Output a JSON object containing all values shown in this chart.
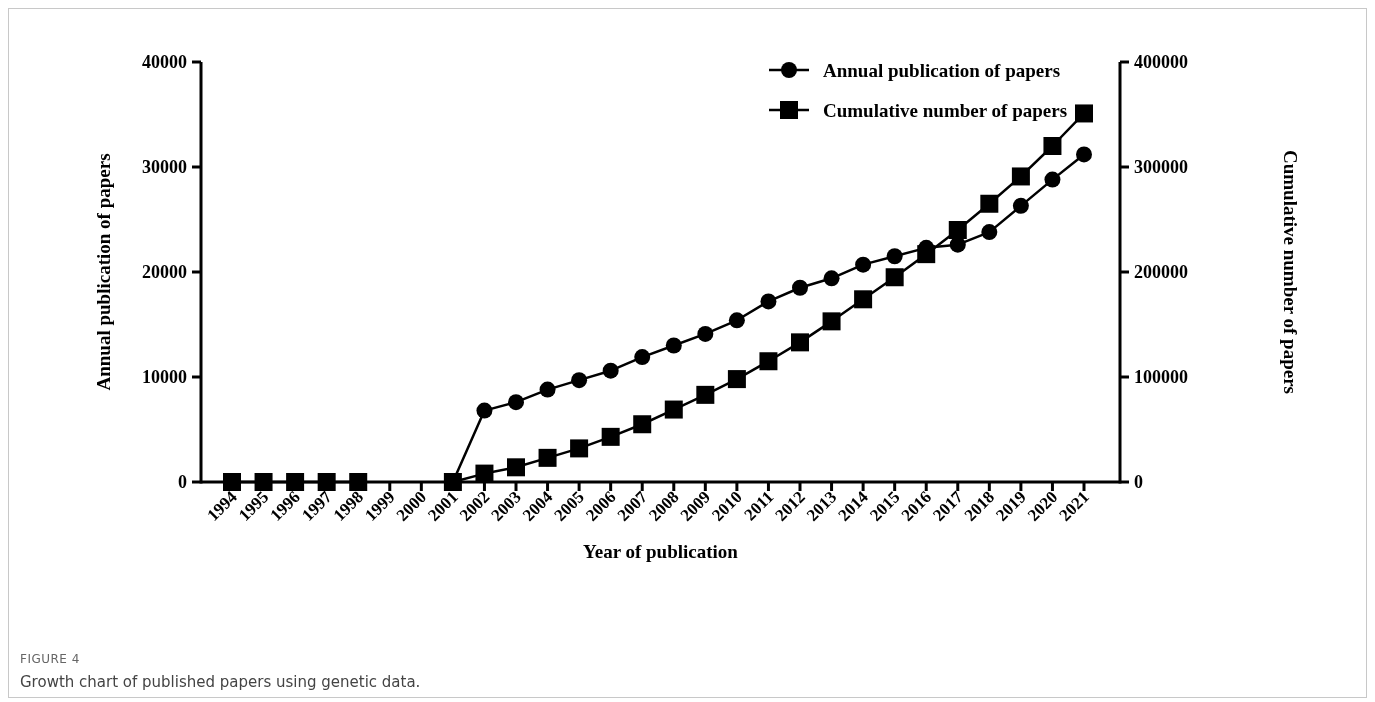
{
  "chart_data": {
    "type": "line",
    "xlabel": "Year of publication",
    "ylabel": "Annual publication of papers",
    "y2label": "Cumulative number of papers",
    "categories": [
      "1994",
      "1995",
      "1996",
      "1997",
      "1998",
      "1999",
      "2000",
      "2001",
      "2002",
      "2003",
      "2004",
      "2005",
      "2006",
      "2007",
      "2008",
      "2009",
      "2010",
      "2011",
      "2012",
      "2013",
      "2014",
      "2015",
      "2016",
      "2017",
      "2018",
      "2019",
      "2020",
      "2021"
    ],
    "series": [
      {
        "name": "Annual publication of papers",
        "color": "#000000",
        "marker": "circle",
        "values": [
          null,
          null,
          null,
          null,
          null,
          null,
          null,
          0,
          6800,
          7600,
          8800,
          9700,
          10600,
          11900,
          13000,
          14100,
          15400,
          17200,
          18500,
          19400,
          20700,
          21500,
          22300,
          22600,
          23800,
          26300,
          28800,
          31200
        ]
      },
      {
        "name": "Cumulative number of papers",
        "color": "#000000",
        "marker": "square",
        "axis": "y2",
        "values": [
          0,
          0,
          0,
          0,
          0,
          null,
          null,
          0,
          8000,
          14000,
          23000,
          32000,
          43000,
          55000,
          69000,
          83000,
          98000,
          115000,
          133000,
          153000,
          174000,
          195000,
          217000,
          240000,
          265000,
          291000,
          320000,
          351000
        ]
      }
    ],
    "ylim": [
      0,
      40000
    ],
    "yticks": [
      0,
      10000,
      20000,
      30000,
      40000
    ],
    "y2lim": [
      0,
      400000
    ],
    "y2ticks": [
      0,
      100000,
      200000,
      300000,
      400000
    ],
    "legend": "top right",
    "grid": false,
    "annotations": [
      "FIGURE 4",
      "Growth chart of published papers using genetic data."
    ]
  }
}
